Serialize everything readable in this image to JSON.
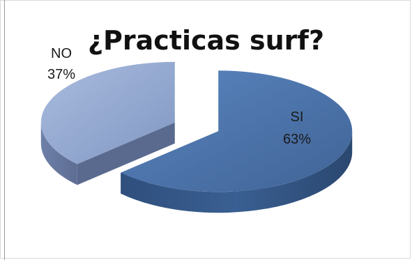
{
  "chart_data": {
    "type": "pie",
    "title": "¿Practicas surf?",
    "style": "3d-exploded",
    "slices": [
      {
        "label": "SI",
        "percent_label": "63%",
        "value": 63,
        "color": "#4f77ac"
      },
      {
        "label": "NO",
        "percent_label": "37%",
        "value": 37,
        "color": "#94a9d1"
      }
    ]
  }
}
